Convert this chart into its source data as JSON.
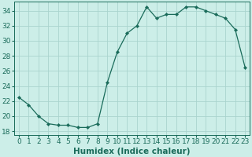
{
  "x": [
    0,
    1,
    2,
    3,
    4,
    5,
    6,
    7,
    8,
    9,
    10,
    11,
    12,
    13,
    14,
    15,
    16,
    17,
    18,
    19,
    20,
    21,
    22,
    23
  ],
  "y": [
    22.5,
    21.5,
    20.0,
    19.0,
    18.8,
    18.8,
    18.5,
    18.5,
    19.0,
    24.5,
    28.5,
    31.0,
    32.0,
    34.5,
    33.0,
    33.5,
    33.5,
    34.5,
    34.5,
    34.0,
    33.5,
    33.0,
    31.5,
    26.5
  ],
  "line_color": "#1a6b5a",
  "marker": "D",
  "marker_size": 2.2,
  "bg_color": "#cceee8",
  "grid_color": "#aad4ce",
  "xlabel": "Humidex (Indice chaleur)",
  "ylim": [
    17.5,
    35.2
  ],
  "xlim": [
    -0.5,
    23.5
  ],
  "yticks": [
    18,
    20,
    22,
    24,
    26,
    28,
    30,
    32,
    34
  ],
  "xticks": [
    0,
    1,
    2,
    3,
    4,
    5,
    6,
    7,
    8,
    9,
    10,
    11,
    12,
    13,
    14,
    15,
    16,
    17,
    18,
    19,
    20,
    21,
    22,
    23
  ],
  "xlabel_fontsize": 7.5,
  "tick_fontsize": 6.5
}
